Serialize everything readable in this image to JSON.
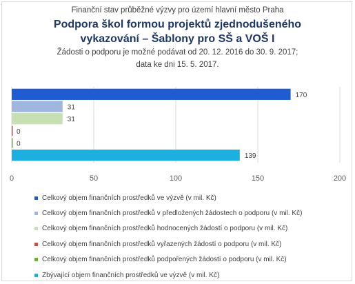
{
  "header": {
    "line1": "Finanční stav průběžné výzvy pro území hlavní město Praha",
    "title_line1": "Podpora škol formou projektů zjednodušeného",
    "title_line2": "vykazování – Šablony pro SŠ a VOŠ I",
    "note_line1": "Žádosti o podporu je možné  podávat od 20. 12. 2016 do 30. 9. 2017;",
    "note_line2": "data ke dni 15. 5. 2017."
  },
  "chart_data": {
    "type": "bar",
    "orientation": "horizontal",
    "title": "Podpora škol formou projektů zjednodušeného vykazování – Šablony pro SŠ a VOŠ I",
    "xlim": [
      0,
      200
    ],
    "xticks": [
      0,
      50,
      100,
      150,
      200
    ],
    "grid": true,
    "legend_position": "bottom",
    "series": [
      {
        "name": "Celkový objem finančních prostředků ve výzvě (v mil. Kč)",
        "value": 170,
        "label": "170",
        "color": "#1f5bd1"
      },
      {
        "name": "Celkový objem finančních prostředků v předložených žádostech o podporu (v mil. Kč)",
        "value": 31,
        "label": "31",
        "color": "#a0b6df"
      },
      {
        "name": "Celkový objem finančních prostředků hodnocených žádostí o podporu (v mil. Kč)",
        "value": 31,
        "label": "31",
        "color": "#c6e0b4"
      },
      {
        "name": "Celkový objem finančních prostředků vyřazených žádostí o podporu (v mil. Kč)",
        "value": 0,
        "label": "0",
        "color": "#c0504d"
      },
      {
        "name": "Celkový objem finančních prostředků podpořených žádostí o podporu (v mil. Kč)",
        "value": 0,
        "label": "0",
        "color": "#70ad47"
      },
      {
        "name": "Zbývající objem finančních prostředků ve výzvě (v mil. Kč)",
        "value": 139,
        "label": "139",
        "color": "#1bb0e0"
      }
    ]
  }
}
